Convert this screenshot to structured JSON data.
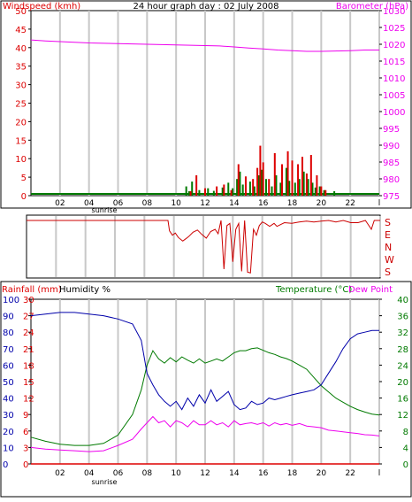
{
  "page": {
    "title": "24 hour graph day : 02 July 2008",
    "colors": {
      "wind": "#dd0000",
      "gust": "#007a00",
      "baro": "#ee00ee",
      "rain": "#dd0000",
      "humidity": "#0000aa",
      "temperature": "#007a00",
      "dewpoint": "#ee00ee",
      "winddir": "#cc0000",
      "grid": "#c8c8c8"
    }
  },
  "chart_data": [
    {
      "id": "wind_baro",
      "type": "bar+line",
      "title": "24 hour graph day : 02 July 2008",
      "ylabel_left": "Windspeed (kmh)",
      "ylabel_right": "Barometer (hPa)",
      "left_ticks": [
        "0",
        "5",
        "10",
        "15",
        "20",
        "25",
        "30",
        "35",
        "40",
        "45",
        "50"
      ],
      "right_ticks": [
        "975",
        "980",
        "985",
        "990",
        "995",
        "1000",
        "1005",
        "1010",
        "1015",
        "1020",
        "1025",
        "1030"
      ],
      "ylim_left": [
        0,
        50
      ],
      "ylim_right": [
        975,
        1030
      ],
      "x_ticks": [
        "02",
        "04",
        "06",
        "08",
        "10",
        "12",
        "14",
        "16",
        "18",
        "20",
        "22",
        "l"
      ],
      "sunrise_label": "sunrise",
      "grid": true,
      "barometer_hpa": [
        [
          0,
          1021.3
        ],
        [
          1,
          1021.0
        ],
        [
          2,
          1020.8
        ],
        [
          3,
          1020.6
        ],
        [
          4,
          1020.4
        ],
        [
          5,
          1020.3
        ],
        [
          6,
          1020.2
        ],
        [
          7,
          1020.1
        ],
        [
          8,
          1020.0
        ],
        [
          9,
          1019.9
        ],
        [
          10,
          1019.8
        ],
        [
          11,
          1019.7
        ],
        [
          12,
          1019.6
        ],
        [
          13,
          1019.5
        ],
        [
          14,
          1019.2
        ],
        [
          15,
          1018.9
        ],
        [
          16,
          1018.6
        ],
        [
          17,
          1018.3
        ],
        [
          18,
          1018.1
        ],
        [
          19,
          1017.9
        ],
        [
          20,
          1017.9
        ],
        [
          21,
          1018.0
        ],
        [
          22,
          1018.1
        ],
        [
          23,
          1018.3
        ],
        [
          24,
          1018.3
        ]
      ],
      "wind_gust_kmh": [
        [
          10.7,
          2.5
        ],
        [
          10.9,
          1.2
        ],
        [
          11.1,
          3.8
        ],
        [
          11.6,
          1.5
        ],
        [
          12.2,
          2.0
        ],
        [
          12.6,
          1.3
        ],
        [
          13.2,
          2.2
        ],
        [
          13.6,
          3.5
        ],
        [
          13.9,
          2.0
        ],
        [
          14.2,
          4.5
        ],
        [
          14.4,
          6.5
        ],
        [
          14.6,
          3.0
        ],
        [
          15.1,
          3.8
        ],
        [
          15.4,
          2.5
        ],
        [
          15.7,
          5.5
        ],
        [
          15.9,
          7.0
        ],
        [
          16.2,
          4.5
        ],
        [
          16.6,
          2.5
        ],
        [
          16.9,
          5.5
        ],
        [
          17.2,
          3.5
        ],
        [
          17.6,
          7.5
        ],
        [
          17.8,
          4.0
        ],
        [
          18.2,
          3.5
        ],
        [
          18.5,
          4.5
        ],
        [
          18.8,
          6.5
        ],
        [
          19.1,
          4.5
        ],
        [
          19.4,
          3.5
        ],
        [
          19.6,
          2.2
        ],
        [
          19.9,
          2.5
        ],
        [
          20.2,
          1.5
        ],
        [
          20.9,
          1.2
        ]
      ],
      "wind_speed_kmh": [
        [
          11.0,
          1.2
        ],
        [
          11.4,
          5.5
        ],
        [
          12.0,
          2.0
        ],
        [
          12.8,
          2.5
        ],
        [
          13.3,
          3.0
        ],
        [
          13.8,
          1.5
        ],
        [
          14.3,
          8.5
        ],
        [
          14.8,
          5.2
        ],
        [
          15.3,
          4.5
        ],
        [
          15.6,
          7.5
        ],
        [
          15.8,
          13.5
        ],
        [
          16.0,
          9.0
        ],
        [
          16.4,
          4.5
        ],
        [
          16.8,
          11.5
        ],
        [
          17.3,
          8.5
        ],
        [
          17.7,
          12.0
        ],
        [
          18.0,
          9.5
        ],
        [
          18.4,
          8.5
        ],
        [
          18.7,
          10.5
        ],
        [
          19.0,
          6.0
        ],
        [
          19.3,
          11.0
        ],
        [
          19.7,
          5.5
        ],
        [
          20.0,
          2.5
        ],
        [
          20.3,
          1.5
        ]
      ]
    },
    {
      "id": "wind_direction",
      "type": "line",
      "y_ticks": [
        "S",
        "E",
        "N",
        "W",
        "S"
      ],
      "note": "direction in compass degrees (0=N,90=E,180=S,270=W,360=S)",
      "direction_deg": [
        [
          0,
          180
        ],
        [
          9.5,
          180
        ],
        [
          9.6,
          180
        ],
        [
          9.7,
          250
        ],
        [
          9.9,
          280
        ],
        [
          10.1,
          265
        ],
        [
          10.3,
          295
        ],
        [
          10.6,
          320
        ],
        [
          10.8,
          305
        ],
        [
          11.0,
          290
        ],
        [
          11.3,
          260
        ],
        [
          11.6,
          245
        ],
        [
          11.9,
          275
        ],
        [
          12.2,
          300
        ],
        [
          12.5,
          255
        ],
        [
          12.8,
          240
        ],
        [
          13.0,
          270
        ],
        [
          13.2,
          180
        ],
        [
          13.4,
          150
        ],
        [
          13.6,
          215
        ],
        [
          13.8,
          200
        ],
        [
          14.0,
          100
        ],
        [
          14.2,
          240
        ],
        [
          14.4,
          200
        ],
        [
          14.6,
          165
        ],
        [
          14.8,
          180
        ],
        [
          15.0,
          170
        ],
        [
          15.2,
          175
        ],
        [
          15.4,
          240
        ],
        [
          15.6,
          280
        ],
        [
          15.8,
          215
        ],
        [
          16.0,
          190
        ],
        [
          16.2,
          200
        ],
        [
          16.5,
          220
        ],
        [
          16.8,
          200
        ],
        [
          17.0,
          220
        ],
        [
          17.3,
          205
        ],
        [
          17.5,
          195
        ],
        [
          18.0,
          200
        ],
        [
          18.5,
          190
        ],
        [
          19.0,
          185
        ],
        [
          19.5,
          190
        ],
        [
          20.0,
          185
        ],
        [
          20.5,
          180
        ],
        [
          21.0,
          190
        ],
        [
          21.5,
          180
        ],
        [
          22.0,
          195
        ],
        [
          22.5,
          195
        ],
        [
          23.0,
          180
        ],
        [
          23.2,
          210
        ],
        [
          23.4,
          240
        ],
        [
          23.6,
          180
        ],
        [
          24.0,
          180
        ]
      ]
    },
    {
      "id": "rain_hum_temp",
      "type": "line",
      "ylabel_left": "Rainfall (mm)",
      "ylabel_left2": "Humidity %",
      "ylabel_right": "Temperature (°C)",
      "ylabel_right2": "Dew Point",
      "rain_ticks": [
        "0",
        "3",
        "6",
        "9",
        "12",
        "15",
        "18",
        "21",
        "24",
        "27",
        "30"
      ],
      "humidity_ticks": [
        "0",
        "10",
        "20",
        "30",
        "40",
        "50",
        "60",
        "70",
        "80",
        "90",
        "100"
      ],
      "temp_ticks": [
        "0",
        "4",
        "8",
        "12",
        "16",
        "20",
        "24",
        "28",
        "32",
        "36",
        "40"
      ],
      "ylim_rain": [
        0,
        30
      ],
      "ylim_humidity": [
        0,
        100
      ],
      "ylim_temp": [
        0,
        40
      ],
      "x_ticks": [
        "02",
        "04",
        "06",
        "08",
        "10",
        "12",
        "14",
        "16",
        "18",
        "20",
        "22",
        "l"
      ],
      "sunrise_label": "sunrise",
      "grid": true,
      "rainfall_mm": [
        [
          0,
          0
        ],
        [
          24,
          0
        ]
      ],
      "humidity_pct": [
        [
          0,
          90
        ],
        [
          1,
          91
        ],
        [
          2,
          92
        ],
        [
          3,
          92
        ],
        [
          4,
          91
        ],
        [
          5,
          90
        ],
        [
          6,
          88
        ],
        [
          7,
          85
        ],
        [
          7.6,
          75
        ],
        [
          8,
          55
        ],
        [
          8.4,
          48
        ],
        [
          8.8,
          42
        ],
        [
          9.2,
          38
        ],
        [
          9.6,
          35
        ],
        [
          10,
          38
        ],
        [
          10.4,
          33
        ],
        [
          10.8,
          40
        ],
        [
          11.2,
          35
        ],
        [
          11.6,
          42
        ],
        [
          12,
          37
        ],
        [
          12.4,
          45
        ],
        [
          12.8,
          38
        ],
        [
          13.2,
          41
        ],
        [
          13.6,
          44
        ],
        [
          14,
          36
        ],
        [
          14.4,
          33
        ],
        [
          14.8,
          34
        ],
        [
          15.2,
          38
        ],
        [
          15.6,
          36
        ],
        [
          16,
          37
        ],
        [
          16.4,
          40
        ],
        [
          16.8,
          39
        ],
        [
          17.2,
          40
        ],
        [
          17.6,
          41
        ],
        [
          18,
          42
        ],
        [
          18.5,
          43
        ],
        [
          19,
          44
        ],
        [
          19.5,
          45
        ],
        [
          20,
          48
        ],
        [
          20.5,
          55
        ],
        [
          21,
          62
        ],
        [
          21.5,
          70
        ],
        [
          22,
          76
        ],
        [
          22.5,
          79
        ],
        [
          23,
          80
        ],
        [
          23.5,
          81
        ],
        [
          24,
          81
        ]
      ],
      "temperature_c": [
        [
          0,
          6.5
        ],
        [
          1,
          5.5
        ],
        [
          2,
          4.8
        ],
        [
          3,
          4.5
        ],
        [
          4,
          4.5
        ],
        [
          5,
          5.0
        ],
        [
          6,
          7.0
        ],
        [
          7,
          12.0
        ],
        [
          7.6,
          18.0
        ],
        [
          8,
          24.0
        ],
        [
          8.4,
          27.5
        ],
        [
          8.8,
          25.5
        ],
        [
          9.2,
          24.5
        ],
        [
          9.6,
          25.8
        ],
        [
          10,
          24.8
        ],
        [
          10.4,
          26.0
        ],
        [
          10.8,
          25.2
        ],
        [
          11.2,
          24.5
        ],
        [
          11.6,
          25.5
        ],
        [
          12,
          24.5
        ],
        [
          12.4,
          25.0
        ],
        [
          12.8,
          25.5
        ],
        [
          13.2,
          25.0
        ],
        [
          13.6,
          26.0
        ],
        [
          14,
          27.0
        ],
        [
          14.4,
          27.5
        ],
        [
          14.8,
          27.5
        ],
        [
          15.2,
          28.0
        ],
        [
          15.6,
          28.2
        ],
        [
          16,
          27.6
        ],
        [
          16.4,
          27.0
        ],
        [
          16.8,
          26.6
        ],
        [
          17.2,
          26.0
        ],
        [
          17.6,
          25.6
        ],
        [
          18,
          25.0
        ],
        [
          18.5,
          24.0
        ],
        [
          19,
          23.0
        ],
        [
          19.5,
          21.0
        ],
        [
          20,
          19.0
        ],
        [
          20.5,
          17.5
        ],
        [
          21,
          16.0
        ],
        [
          21.5,
          15.0
        ],
        [
          22,
          14.0
        ],
        [
          22.5,
          13.2
        ],
        [
          23,
          12.6
        ],
        [
          23.5,
          12.1
        ],
        [
          24,
          11.9
        ]
      ],
      "dewpoint_c": [
        [
          0,
          4.0
        ],
        [
          1,
          3.6
        ],
        [
          2,
          3.4
        ],
        [
          3,
          3.2
        ],
        [
          4,
          3.0
        ],
        [
          5,
          3.2
        ],
        [
          6,
          4.5
        ],
        [
          7,
          6.0
        ],
        [
          7.6,
          8.5
        ],
        [
          8,
          10.0
        ],
        [
          8.4,
          11.5
        ],
        [
          8.8,
          10.0
        ],
        [
          9.2,
          10.5
        ],
        [
          9.6,
          9.0
        ],
        [
          10,
          10.5
        ],
        [
          10.4,
          10.0
        ],
        [
          10.8,
          9.0
        ],
        [
          11.2,
          10.5
        ],
        [
          11.6,
          9.5
        ],
        [
          12,
          9.5
        ],
        [
          12.4,
          10.5
        ],
        [
          12.8,
          9.5
        ],
        [
          13.2,
          10.0
        ],
        [
          13.6,
          9.0
        ],
        [
          14,
          10.5
        ],
        [
          14.4,
          9.5
        ],
        [
          14.8,
          9.8
        ],
        [
          15.2,
          10.0
        ],
        [
          15.6,
          9.6
        ],
        [
          16,
          10.0
        ],
        [
          16.4,
          9.2
        ],
        [
          16.8,
          10.0
        ],
        [
          17.2,
          9.5
        ],
        [
          17.6,
          9.8
        ],
        [
          18,
          9.4
        ],
        [
          18.5,
          9.8
        ],
        [
          19,
          9.2
        ],
        [
          19.5,
          9.0
        ],
        [
          20,
          8.8
        ],
        [
          20.5,
          8.2
        ],
        [
          21,
          8.0
        ],
        [
          21.5,
          7.8
        ],
        [
          22,
          7.6
        ],
        [
          22.5,
          7.4
        ],
        [
          23,
          7.1
        ],
        [
          23.5,
          7.0
        ],
        [
          24,
          6.8
        ]
      ]
    }
  ]
}
